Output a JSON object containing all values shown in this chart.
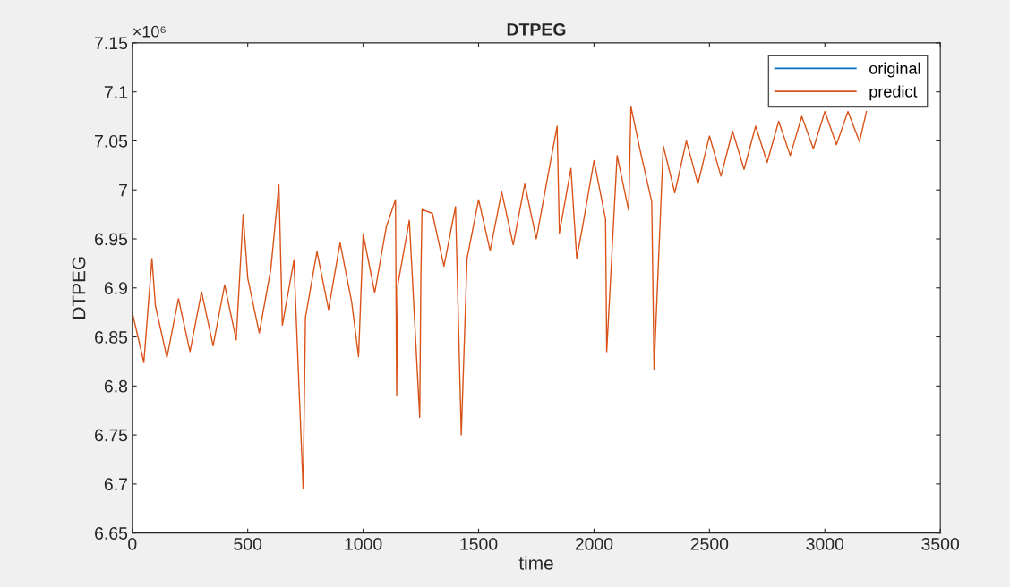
{
  "chart_data": {
    "type": "line",
    "title": "DTPEG",
    "xlabel": "time",
    "ylabel": "DTPEG",
    "annotations": [
      "×10⁶"
    ],
    "x": [
      0,
      50,
      85,
      100,
      150,
      200,
      250,
      300,
      350,
      400,
      450,
      480,
      500,
      550,
      600,
      635,
      650,
      700,
      740,
      750,
      800,
      850,
      900,
      950,
      980,
      1000,
      1050,
      1100,
      1140,
      1145,
      1150,
      1200,
      1245,
      1250,
      1255,
      1300,
      1350,
      1400,
      1425,
      1450,
      1500,
      1550,
      1600,
      1650,
      1700,
      1750,
      1800,
      1840,
      1850,
      1900,
      1925,
      1950,
      2000,
      2050,
      2055,
      2100,
      2150,
      2160,
      2200,
      2250,
      2260,
      2300,
      2350,
      2400,
      2450,
      2500,
      2550,
      2600,
      2650,
      2700,
      2750,
      2800,
      2850,
      2900,
      2950,
      3000,
      3050,
      3100,
      3150,
      3180
    ],
    "series": [
      {
        "name": "original",
        "color": "#0072bd",
        "values": [
          null,
          null,
          null,
          null,
          null,
          null,
          null,
          null,
          null,
          null,
          null,
          null,
          null,
          null,
          null,
          null,
          null,
          null,
          null,
          null,
          null,
          null,
          null,
          null,
          null,
          null,
          null,
          null,
          null,
          null,
          null,
          null,
          null,
          null,
          null,
          null,
          null,
          null,
          null,
          null,
          null,
          null,
          null,
          null,
          null,
          null,
          null,
          null,
          null,
          null,
          null,
          null,
          null,
          null,
          null,
          null,
          null,
          null,
          null,
          null,
          null,
          null,
          null,
          null,
          null,
          null,
          null,
          null,
          null,
          null,
          null,
          null,
          null,
          null,
          null,
          null,
          null,
          null,
          null,
          null
        ]
      },
      {
        "name": "predict",
        "color": "#d95319",
        "values": [
          6.875,
          6.824,
          6.93,
          6.882,
          6.829,
          6.889,
          6.835,
          6.896,
          6.841,
          6.903,
          6.847,
          6.975,
          6.91,
          6.854,
          6.919,
          7.005,
          6.862,
          6.928,
          6.695,
          6.87,
          6.937,
          6.878,
          6.946,
          6.886,
          6.83,
          6.955,
          6.895,
          6.962,
          6.99,
          6.79,
          6.903,
          6.969,
          6.768,
          6.912,
          6.98,
          6.976,
          6.922,
          6.983,
          6.75,
          6.93,
          6.99,
          6.938,
          6.998,
          6.944,
          7.006,
          6.95,
          7.014,
          7.065,
          6.956,
          7.022,
          6.93,
          6.962,
          7.03,
          6.97,
          6.835,
          7.035,
          6.979,
          7.085,
          7.04,
          6.988,
          6.817,
          7.045,
          6.997,
          7.05,
          7.006,
          7.055,
          7.014,
          7.06,
          7.021,
          7.065,
          7.028,
          7.07,
          7.035,
          7.075,
          7.042,
          7.08,
          7.046,
          7.08,
          7.049,
          7.08
        ]
      }
    ],
    "xlim": [
      0,
      3500
    ],
    "xticks": [
      0,
      500,
      1000,
      1500,
      2000,
      2500,
      3000,
      3500
    ],
    "ylim": [
      6.65,
      7.15
    ],
    "yticks": [
      6.65,
      6.7,
      6.75,
      6.8,
      6.85,
      6.9,
      6.95,
      7,
      7.05,
      7.1,
      7.15
    ],
    "grid": false,
    "legend": "top right",
    "line_style": "solid",
    "marker": "none"
  }
}
